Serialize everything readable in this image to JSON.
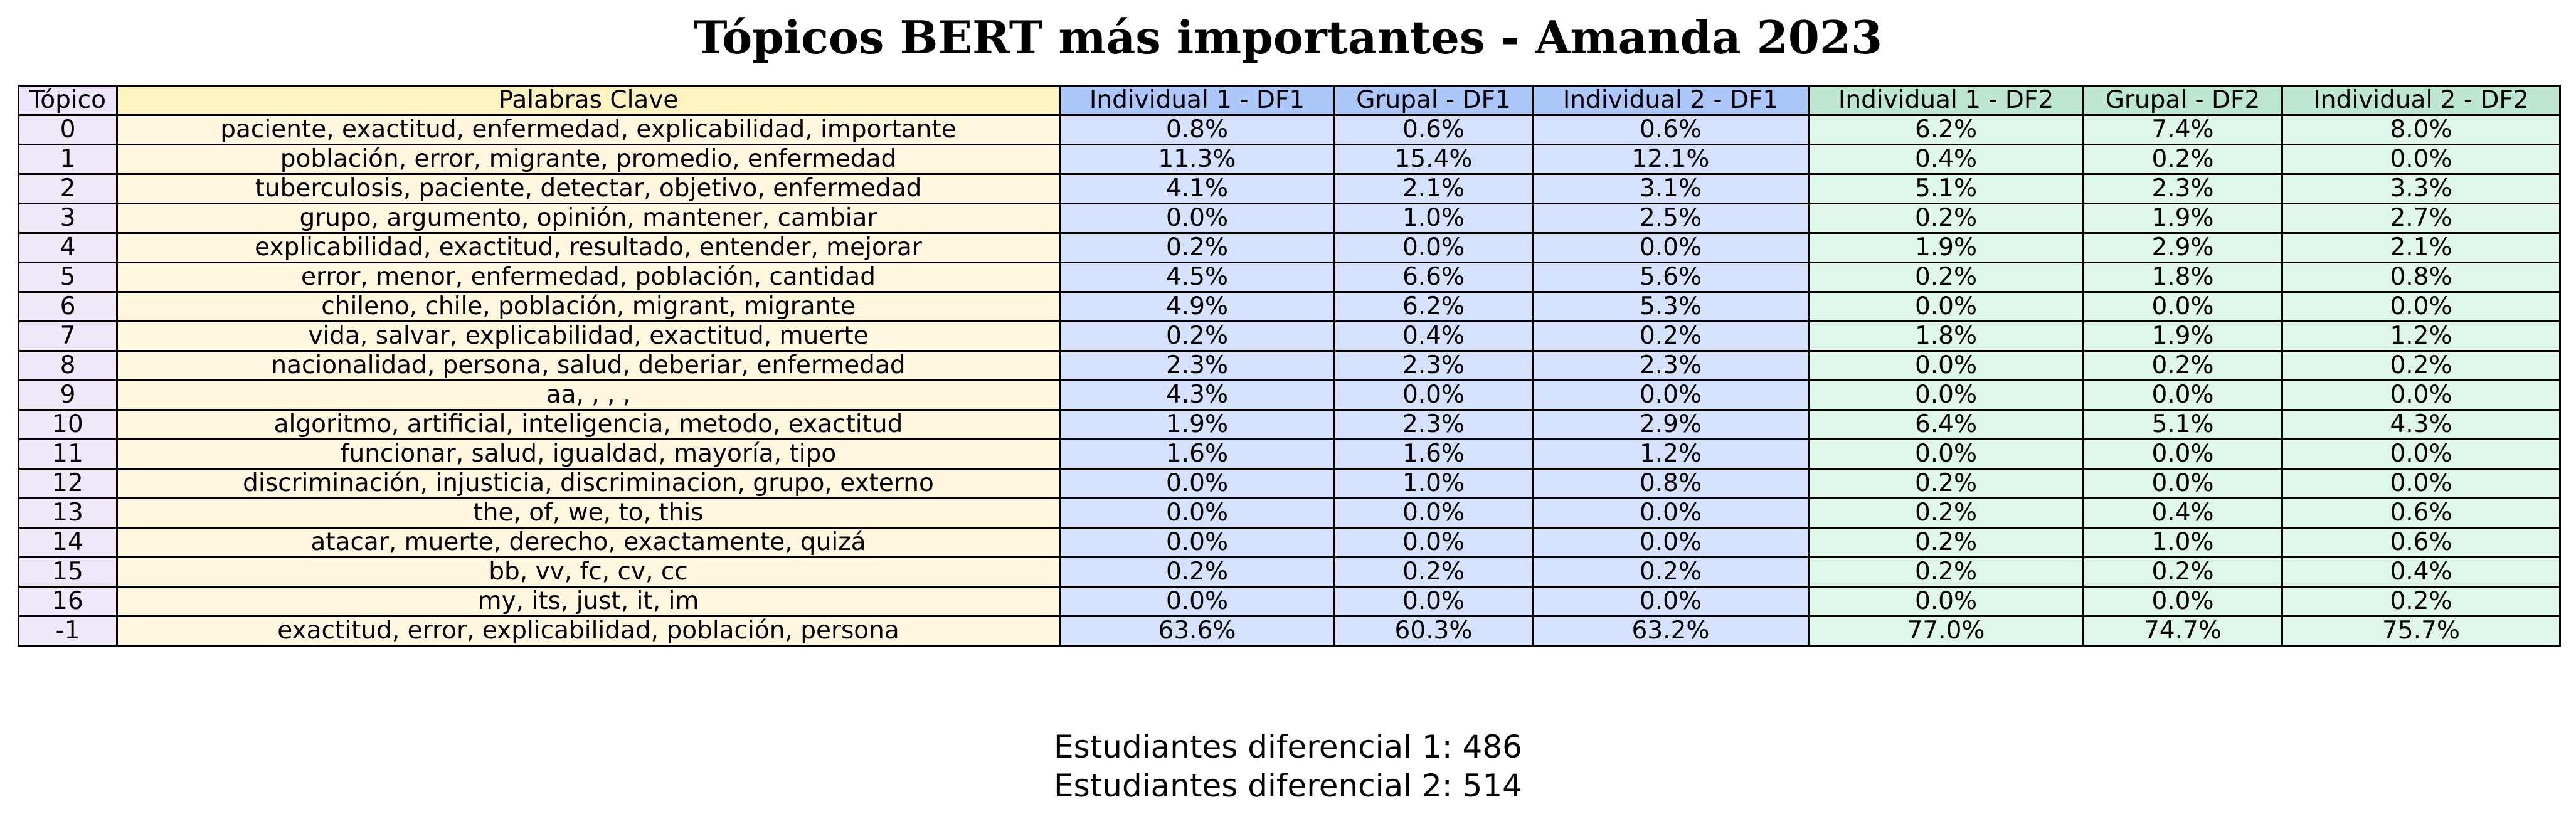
{
  "chart_data": {
    "type": "table",
    "title": "Tópicos BERT más importantes - Amanda 2023",
    "columns": [
      "Tópico",
      "Palabras Clave",
      "Individual 1 - DF1",
      "Grupal - DF1",
      "Individual 2 - DF1",
      "Individual 1 - DF2",
      "Grupal - DF2",
      "Individual 2 - DF2"
    ],
    "column_groups": [
      "topic",
      "keywords",
      "df1",
      "df1",
      "df1",
      "df2",
      "df2",
      "df2"
    ],
    "colors": {
      "topic": "#f1e8fa",
      "keywords": "#fff8df",
      "df1": "#d6e2fd",
      "df2": "#dff6ea",
      "topic_header": "#efe5fb",
      "keywords_header": "#fff3c2",
      "df1_header": "#aec7fb",
      "df2_header": "#bde7d0"
    },
    "rows": [
      [
        "0",
        "paciente, exactitud, enfermedad, explicabilidad, importante",
        "0.8%",
        "0.6%",
        "0.6%",
        "6.2%",
        "7.4%",
        "8.0%"
      ],
      [
        "1",
        "población, error, migrante, promedio, enfermedad",
        "11.3%",
        "15.4%",
        "12.1%",
        "0.4%",
        "0.2%",
        "0.0%"
      ],
      [
        "2",
        "tuberculosis, paciente, detectar, objetivo, enfermedad",
        "4.1%",
        "2.1%",
        "3.1%",
        "5.1%",
        "2.3%",
        "3.3%"
      ],
      [
        "3",
        "grupo, argumento, opinión, mantener, cambiar",
        "0.0%",
        "1.0%",
        "2.5%",
        "0.2%",
        "1.9%",
        "2.7%"
      ],
      [
        "4",
        "explicabilidad, exactitud, resultado, entender, mejorar",
        "0.2%",
        "0.0%",
        "0.0%",
        "1.9%",
        "2.9%",
        "2.1%"
      ],
      [
        "5",
        "error, menor, enfermedad, población, cantidad",
        "4.5%",
        "6.6%",
        "5.6%",
        "0.2%",
        "1.8%",
        "0.8%"
      ],
      [
        "6",
        "chileno, chile, población, migrant, migrante",
        "4.9%",
        "6.2%",
        "5.3%",
        "0.0%",
        "0.0%",
        "0.0%"
      ],
      [
        "7",
        "vida, salvar, explicabilidad, exactitud, muerte",
        "0.2%",
        "0.4%",
        "0.2%",
        "1.8%",
        "1.9%",
        "1.2%"
      ],
      [
        "8",
        "nacionalidad, persona, salud, deberiar, enfermedad",
        "2.3%",
        "2.3%",
        "2.3%",
        "0.0%",
        "0.2%",
        "0.2%"
      ],
      [
        "9",
        "aa, , , ,",
        "4.3%",
        "0.0%",
        "0.0%",
        "0.0%",
        "0.0%",
        "0.0%"
      ],
      [
        "10",
        "algoritmo, artificial, inteligencia, metodo, exactitud",
        "1.9%",
        "2.3%",
        "2.9%",
        "6.4%",
        "5.1%",
        "4.3%"
      ],
      [
        "11",
        "funcionar, salud, igualdad, mayoría, tipo",
        "1.6%",
        "1.6%",
        "1.2%",
        "0.0%",
        "0.0%",
        "0.0%"
      ],
      [
        "12",
        "discriminación, injusticia, discriminacion, grupo, externo",
        "0.0%",
        "1.0%",
        "0.8%",
        "0.2%",
        "0.0%",
        "0.0%"
      ],
      [
        "13",
        "the, of, we, to, this",
        "0.0%",
        "0.0%",
        "0.0%",
        "0.2%",
        "0.4%",
        "0.6%"
      ],
      [
        "14",
        "atacar, muerte, derecho, exactamente, quizá",
        "0.0%",
        "0.0%",
        "0.0%",
        "0.2%",
        "1.0%",
        "0.6%"
      ],
      [
        "15",
        "bb, vv, fc, cv, cc",
        "0.2%",
        "0.2%",
        "0.2%",
        "0.2%",
        "0.2%",
        "0.4%"
      ],
      [
        "16",
        "my, its, just, it, im",
        "0.0%",
        "0.0%",
        "0.0%",
        "0.0%",
        "0.0%",
        "0.2%"
      ],
      [
        "-1",
        "exactitud, error, explicabilidad, población, persona",
        "63.6%",
        "60.3%",
        "63.2%",
        "77.0%",
        "74.7%",
        "75.7%"
      ]
    ],
    "footer": [
      "Estudiantes diferencial 1: 486",
      "Estudiantes diferencial 2: 514"
    ]
  }
}
